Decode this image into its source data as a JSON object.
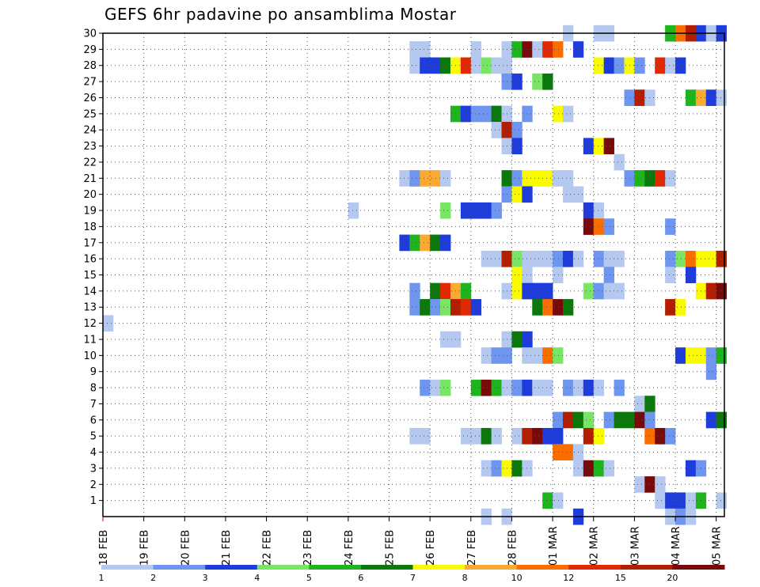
{
  "chart_data": {
    "type": "heatmap",
    "title": "GEFS 6hr padavine po ansamblima Mostar",
    "x_ticks": [
      "18 FEB",
      "19 FEB",
      "20 FEB",
      "21 FEB",
      "22 FEB",
      "23 FEB",
      "24 FEB",
      "25 FEB",
      "26 FEB",
      "27 FEB",
      "28 FEB",
      "01 MAR",
      "02 MAR",
      "03 MAR",
      "04 MAR",
      "05 MAR"
    ],
    "y_ticks": [
      1,
      2,
      3,
      4,
      5,
      6,
      7,
      8,
      9,
      10,
      11,
      12,
      13,
      14,
      15,
      16,
      17,
      18,
      19,
      20,
      21,
      22,
      23,
      24,
      25,
      26,
      27,
      28,
      29,
      30
    ],
    "x_range_days": [
      0,
      15.2
    ],
    "y_range": [
      0,
      30
    ],
    "grid": true,
    "legend": {
      "position": "bottom",
      "labels": [
        "1",
        "2",
        "3",
        "4",
        "5",
        "6",
        "7",
        "8",
        "10",
        "12",
        "15",
        "20"
      ],
      "colors": [
        "#b4c8f0",
        "#6e96f0",
        "#1e3cdc",
        "#78e664",
        "#1eb41e",
        "#0a780a",
        "#fafa00",
        "#faaa32",
        "#fa6e00",
        "#e12800",
        "#b41e00",
        "#780a0a"
      ]
    },
    "cells_note": "member, time index (6h steps from 18 FEB 00Z), color class index",
    "cells": [
      [
        30,
        45,
        0
      ],
      [
        30,
        48,
        0
      ],
      [
        30,
        49,
        0
      ],
      [
        30,
        55,
        4
      ],
      [
        30,
        56,
        8
      ],
      [
        30,
        57,
        10
      ],
      [
        30,
        58,
        2
      ],
      [
        30,
        59,
        0
      ],
      [
        30,
        60,
        2
      ],
      [
        29,
        30,
        0
      ],
      [
        29,
        31,
        0
      ],
      [
        29,
        36,
        0
      ],
      [
        29,
        39,
        0
      ],
      [
        29,
        40,
        4
      ],
      [
        29,
        41,
        11
      ],
      [
        29,
        42,
        0
      ],
      [
        29,
        43,
        9
      ],
      [
        29,
        44,
        8
      ],
      [
        29,
        46,
        2
      ],
      [
        28,
        30,
        0
      ],
      [
        28,
        31,
        2
      ],
      [
        28,
        32,
        2
      ],
      [
        28,
        33,
        5
      ],
      [
        28,
        34,
        6
      ],
      [
        28,
        35,
        9
      ],
      [
        28,
        36,
        0
      ],
      [
        28,
        37,
        3
      ],
      [
        28,
        38,
        0
      ],
      [
        28,
        39,
        0
      ],
      [
        28,
        48,
        6
      ],
      [
        28,
        49,
        2
      ],
      [
        28,
        50,
        1
      ],
      [
        28,
        51,
        6
      ],
      [
        28,
        52,
        1
      ],
      [
        28,
        54,
        9
      ],
      [
        28,
        55,
        0
      ],
      [
        28,
        56,
        2
      ],
      [
        27,
        39,
        1
      ],
      [
        27,
        40,
        2
      ],
      [
        27,
        42,
        3
      ],
      [
        27,
        43,
        5
      ],
      [
        26,
        51,
        1
      ],
      [
        26,
        52,
        10
      ],
      [
        26,
        53,
        0
      ],
      [
        26,
        57,
        4
      ],
      [
        26,
        58,
        7
      ],
      [
        26,
        59,
        2
      ],
      [
        26,
        60,
        0
      ],
      [
        25,
        34,
        4
      ],
      [
        25,
        35,
        2
      ],
      [
        25,
        36,
        1
      ],
      [
        25,
        37,
        1
      ],
      [
        25,
        38,
        5
      ],
      [
        25,
        39,
        0
      ],
      [
        25,
        41,
        1
      ],
      [
        25,
        44,
        6
      ],
      [
        25,
        45,
        0
      ],
      [
        24,
        38,
        0
      ],
      [
        24,
        39,
        10
      ],
      [
        24,
        40,
        1
      ],
      [
        23,
        39,
        0
      ],
      [
        23,
        40,
        2
      ],
      [
        23,
        47,
        2
      ],
      [
        23,
        48,
        6
      ],
      [
        23,
        49,
        11
      ],
      [
        22,
        50,
        0
      ],
      [
        21,
        29,
        0
      ],
      [
        21,
        30,
        1
      ],
      [
        21,
        31,
        7
      ],
      [
        21,
        32,
        7
      ],
      [
        21,
        33,
        0
      ],
      [
        21,
        39,
        5
      ],
      [
        21,
        40,
        1
      ],
      [
        21,
        41,
        6
      ],
      [
        21,
        42,
        6
      ],
      [
        21,
        43,
        6
      ],
      [
        21,
        44,
        0
      ],
      [
        21,
        45,
        0
      ],
      [
        21,
        51,
        1
      ],
      [
        21,
        52,
        4
      ],
      [
        21,
        53,
        5
      ],
      [
        21,
        54,
        9
      ],
      [
        21,
        55,
        0
      ],
      [
        20,
        39,
        1
      ],
      [
        20,
        40,
        6
      ],
      [
        20,
        41,
        2
      ],
      [
        20,
        45,
        0
      ],
      [
        20,
        46,
        0
      ],
      [
        19,
        24,
        0
      ],
      [
        19,
        33,
        3
      ],
      [
        19,
        35,
        2
      ],
      [
        19,
        36,
        2
      ],
      [
        19,
        37,
        2
      ],
      [
        19,
        38,
        1
      ],
      [
        19,
        47,
        2
      ],
      [
        19,
        48,
        0
      ],
      [
        18,
        47,
        11
      ],
      [
        18,
        48,
        8
      ],
      [
        18,
        49,
        1
      ],
      [
        18,
        55,
        1
      ],
      [
        17,
        29,
        2
      ],
      [
        17,
        30,
        4
      ],
      [
        17,
        31,
        7
      ],
      [
        17,
        32,
        5
      ],
      [
        17,
        33,
        2
      ],
      [
        16,
        37,
        0
      ],
      [
        16,
        38,
        0
      ],
      [
        16,
        39,
        10
      ],
      [
        16,
        40,
        3
      ],
      [
        16,
        41,
        0
      ],
      [
        16,
        42,
        0
      ],
      [
        16,
        43,
        0
      ],
      [
        16,
        44,
        1
      ],
      [
        16,
        45,
        2
      ],
      [
        16,
        46,
        0
      ],
      [
        16,
        48,
        1
      ],
      [
        16,
        49,
        0
      ],
      [
        16,
        50,
        0
      ],
      [
        16,
        55,
        1
      ],
      [
        16,
        56,
        3
      ],
      [
        16,
        57,
        8
      ],
      [
        16,
        58,
        6
      ],
      [
        16,
        59,
        6
      ],
      [
        16,
        60,
        10
      ],
      [
        15,
        40,
        6
      ],
      [
        15,
        41,
        0
      ],
      [
        15,
        44,
        0
      ],
      [
        15,
        49,
        1
      ],
      [
        15,
        55,
        0
      ],
      [
        15,
        57,
        2
      ],
      [
        14,
        30,
        1
      ],
      [
        14,
        32,
        5
      ],
      [
        14,
        33,
        9
      ],
      [
        14,
        34,
        7
      ],
      [
        14,
        35,
        4
      ],
      [
        14,
        39,
        0
      ],
      [
        14,
        40,
        6
      ],
      [
        14,
        41,
        2
      ],
      [
        14,
        42,
        2
      ],
      [
        14,
        43,
        2
      ],
      [
        14,
        47,
        3
      ],
      [
        14,
        48,
        1
      ],
      [
        14,
        49,
        0
      ],
      [
        14,
        50,
        0
      ],
      [
        14,
        58,
        6
      ],
      [
        14,
        59,
        10
      ],
      [
        14,
        60,
        11
      ],
      [
        13,
        30,
        1
      ],
      [
        13,
        31,
        5
      ],
      [
        13,
        32,
        1
      ],
      [
        13,
        33,
        3
      ],
      [
        13,
        34,
        10
      ],
      [
        13,
        35,
        9
      ],
      [
        13,
        36,
        2
      ],
      [
        13,
        42,
        5
      ],
      [
        13,
        43,
        8
      ],
      [
        13,
        44,
        11
      ],
      [
        13,
        45,
        5
      ],
      [
        13,
        55,
        10
      ],
      [
        13,
        56,
        6
      ],
      [
        12,
        0,
        0
      ],
      [
        11,
        33,
        0
      ],
      [
        11,
        34,
        0
      ],
      [
        11,
        39,
        0
      ],
      [
        11,
        40,
        5
      ],
      [
        11,
        41,
        2
      ],
      [
        10,
        37,
        0
      ],
      [
        10,
        38,
        1
      ],
      [
        10,
        39,
        1
      ],
      [
        10,
        41,
        0
      ],
      [
        10,
        42,
        0
      ],
      [
        10,
        43,
        8
      ],
      [
        10,
        44,
        3
      ],
      [
        10,
        56,
        2
      ],
      [
        10,
        57,
        6
      ],
      [
        10,
        58,
        6
      ],
      [
        10,
        59,
        1
      ],
      [
        10,
        60,
        4
      ],
      [
        9,
        59,
        1
      ],
      [
        8,
        31,
        1
      ],
      [
        8,
        32,
        0
      ],
      [
        8,
        33,
        3
      ],
      [
        8,
        36,
        4
      ],
      [
        8,
        37,
        11
      ],
      [
        8,
        38,
        4
      ],
      [
        8,
        39,
        0
      ],
      [
        8,
        40,
        1
      ],
      [
        8,
        41,
        2
      ],
      [
        8,
        42,
        0
      ],
      [
        8,
        43,
        0
      ],
      [
        8,
        45,
        1
      ],
      [
        8,
        46,
        0
      ],
      [
        8,
        47,
        2
      ],
      [
        8,
        48,
        0
      ],
      [
        8,
        50,
        1
      ],
      [
        7,
        52,
        0
      ],
      [
        7,
        53,
        5
      ],
      [
        6,
        44,
        1
      ],
      [
        6,
        45,
        10
      ],
      [
        6,
        46,
        5
      ],
      [
        6,
        47,
        3
      ],
      [
        6,
        49,
        1
      ],
      [
        6,
        50,
        5
      ],
      [
        6,
        51,
        5
      ],
      [
        6,
        52,
        11
      ],
      [
        6,
        53,
        1
      ],
      [
        6,
        59,
        2
      ],
      [
        6,
        60,
        5
      ],
      [
        5,
        30,
        0
      ],
      [
        5,
        31,
        0
      ],
      [
        5,
        35,
        0
      ],
      [
        5,
        36,
        0
      ],
      [
        5,
        37,
        5
      ],
      [
        5,
        38,
        0
      ],
      [
        5,
        40,
        0
      ],
      [
        5,
        41,
        10
      ],
      [
        5,
        42,
        11
      ],
      [
        5,
        43,
        2
      ],
      [
        5,
        44,
        2
      ],
      [
        5,
        47,
        10
      ],
      [
        5,
        48,
        6
      ],
      [
        5,
        53,
        8
      ],
      [
        5,
        54,
        11
      ],
      [
        5,
        55,
        1
      ],
      [
        4,
        44,
        8
      ],
      [
        4,
        45,
        8
      ],
      [
        4,
        46,
        0
      ],
      [
        3,
        37,
        0
      ],
      [
        3,
        38,
        1
      ],
      [
        3,
        39,
        6
      ],
      [
        3,
        40,
        5
      ],
      [
        3,
        41,
        0
      ],
      [
        3,
        46,
        0
      ],
      [
        3,
        47,
        11
      ],
      [
        3,
        48,
        4
      ],
      [
        3,
        49,
        0
      ],
      [
        3,
        57,
        2
      ],
      [
        3,
        58,
        1
      ],
      [
        2,
        52,
        0
      ],
      [
        2,
        53,
        11
      ],
      [
        2,
        54,
        0
      ],
      [
        1,
        43,
        4
      ],
      [
        1,
        44,
        0
      ],
      [
        1,
        54,
        0
      ],
      [
        1,
        55,
        2
      ],
      [
        1,
        56,
        2
      ],
      [
        1,
        57,
        0
      ],
      [
        1,
        58,
        4
      ],
      [
        1,
        60,
        0
      ],
      [
        0,
        37,
        0
      ],
      [
        0,
        39,
        0
      ],
      [
        0,
        46,
        2
      ],
      [
        0,
        55,
        0
      ],
      [
        0,
        56,
        1
      ],
      [
        0,
        57,
        0
      ]
    ]
  }
}
